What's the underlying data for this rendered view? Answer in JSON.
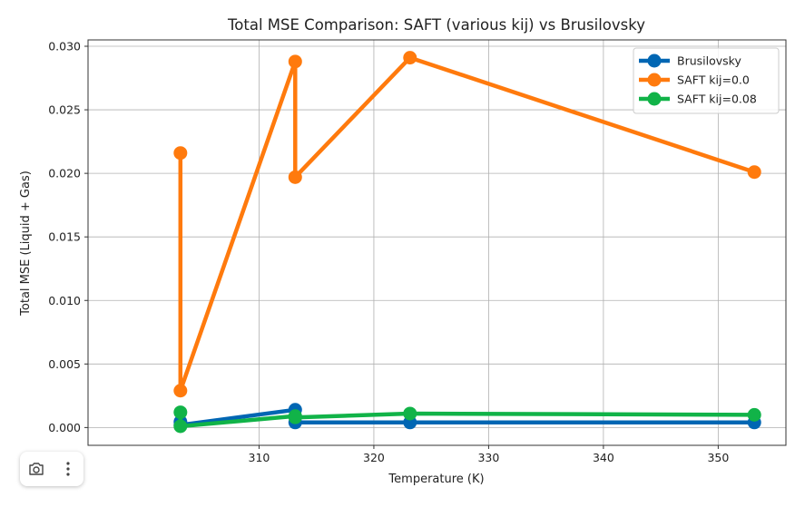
{
  "chart_data": {
    "type": "line",
    "title": "Total MSE Comparison: SAFT (various kij) vs Brusilovsky",
    "xlabel": "Temperature (K)",
    "ylabel": "Total MSE (Liquid + Gas)",
    "xlim": [
      295.1,
      355.9
    ],
    "ylim": [
      -0.0014,
      0.0305
    ],
    "xticks": [
      310,
      320,
      330,
      340,
      350
    ],
    "xtick_labels": [
      "310",
      "320",
      "330",
      "340",
      "350"
    ],
    "yticks": [
      0.0,
      0.005,
      0.01,
      0.015,
      0.02,
      0.025,
      0.03
    ],
    "ytick_labels": [
      "0.000",
      "0.005",
      "0.010",
      "0.015",
      "0.020",
      "0.025",
      "0.030"
    ],
    "grid": true,
    "legend_position": "top-right",
    "series": [
      {
        "name": "Brusilovsky",
        "color": "#0066b3",
        "x": [
          303.15,
          303.15,
          313.15,
          313.15,
          323.15,
          353.15
        ],
        "y": [
          0.00045,
          0.0002,
          0.0014,
          0.0004,
          0.0004,
          0.0004
        ]
      },
      {
        "name": "SAFT kij=0.0",
        "color": "#ff7a0d",
        "x": [
          303.15,
          303.15,
          313.15,
          313.15,
          323.15,
          353.15
        ],
        "y": [
          0.0216,
          0.0029,
          0.0288,
          0.0197,
          0.0291,
          0.0201
        ]
      },
      {
        "name": "SAFT kij=0.08",
        "color": "#11b348",
        "x": [
          303.15,
          303.15,
          313.15,
          313.15,
          323.15,
          353.15
        ],
        "y": [
          0.0012,
          0.0001,
          0.0009,
          0.0008,
          0.0011,
          0.001
        ]
      }
    ]
  },
  "toolbar": {
    "camera_icon": "camera-icon",
    "more_icon": "more-vertical-icon"
  }
}
